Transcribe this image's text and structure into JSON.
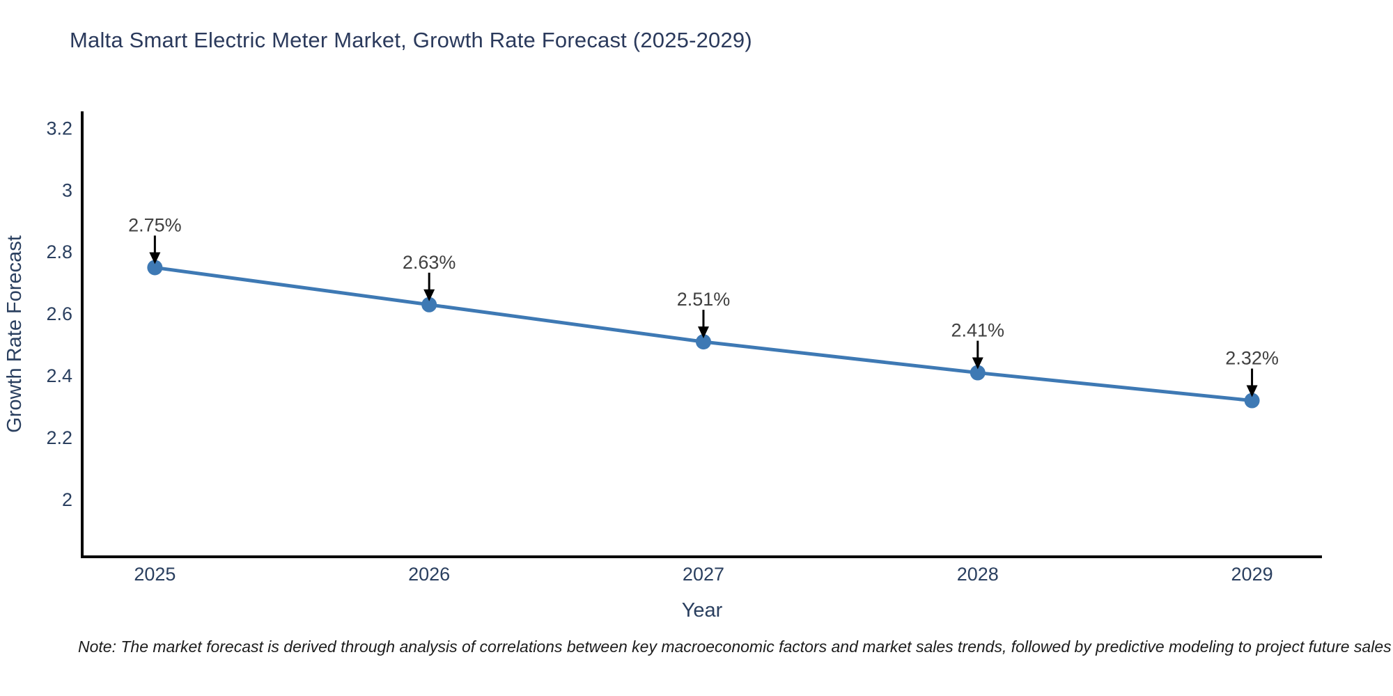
{
  "title": "Malta Smart Electric Meter Market, Growth Rate Forecast (2025-2029)",
  "note": "Note: The market forecast is derived through analysis of correlations between key macroeconomic factors and market sales trends, followed by predictive modeling to project future sales",
  "colors": {
    "title_text": "#2b3a5c",
    "axis_text": "#2a3f5f",
    "annotation_text": "#404040",
    "line": "#3e79b4",
    "marker": "#3e79b4",
    "axis_line": "#000000",
    "arrow": "#000000",
    "background": "#ffffff"
  },
  "chart_data": {
    "type": "line",
    "title": "Malta Smart Electric Meter Market, Growth Rate Forecast (2025-2029)",
    "x": [
      2025,
      2026,
      2027,
      2028,
      2029
    ],
    "series": [
      {
        "name": "Growth Rate Forecast",
        "values": [
          2.75,
          2.63,
          2.51,
          2.41,
          2.32
        ]
      }
    ],
    "point_labels": [
      "2.75%",
      "2.63%",
      "2.51%",
      "2.41%",
      "2.32%"
    ],
    "xlabel": "Year",
    "ylabel": "Growth Rate Forecast",
    "xticks": [
      2025,
      2026,
      2027,
      2028,
      2029
    ],
    "yticks": [
      2,
      2.2,
      2.4,
      2.6,
      2.8,
      3,
      3.2
    ],
    "xlim": [
      2024.735,
      2029.255
    ],
    "ylim": [
      1.815,
      3.255
    ],
    "grid": false,
    "legend": "none",
    "annotations": "each point labeled with its percentage value and a downward black arrow"
  }
}
